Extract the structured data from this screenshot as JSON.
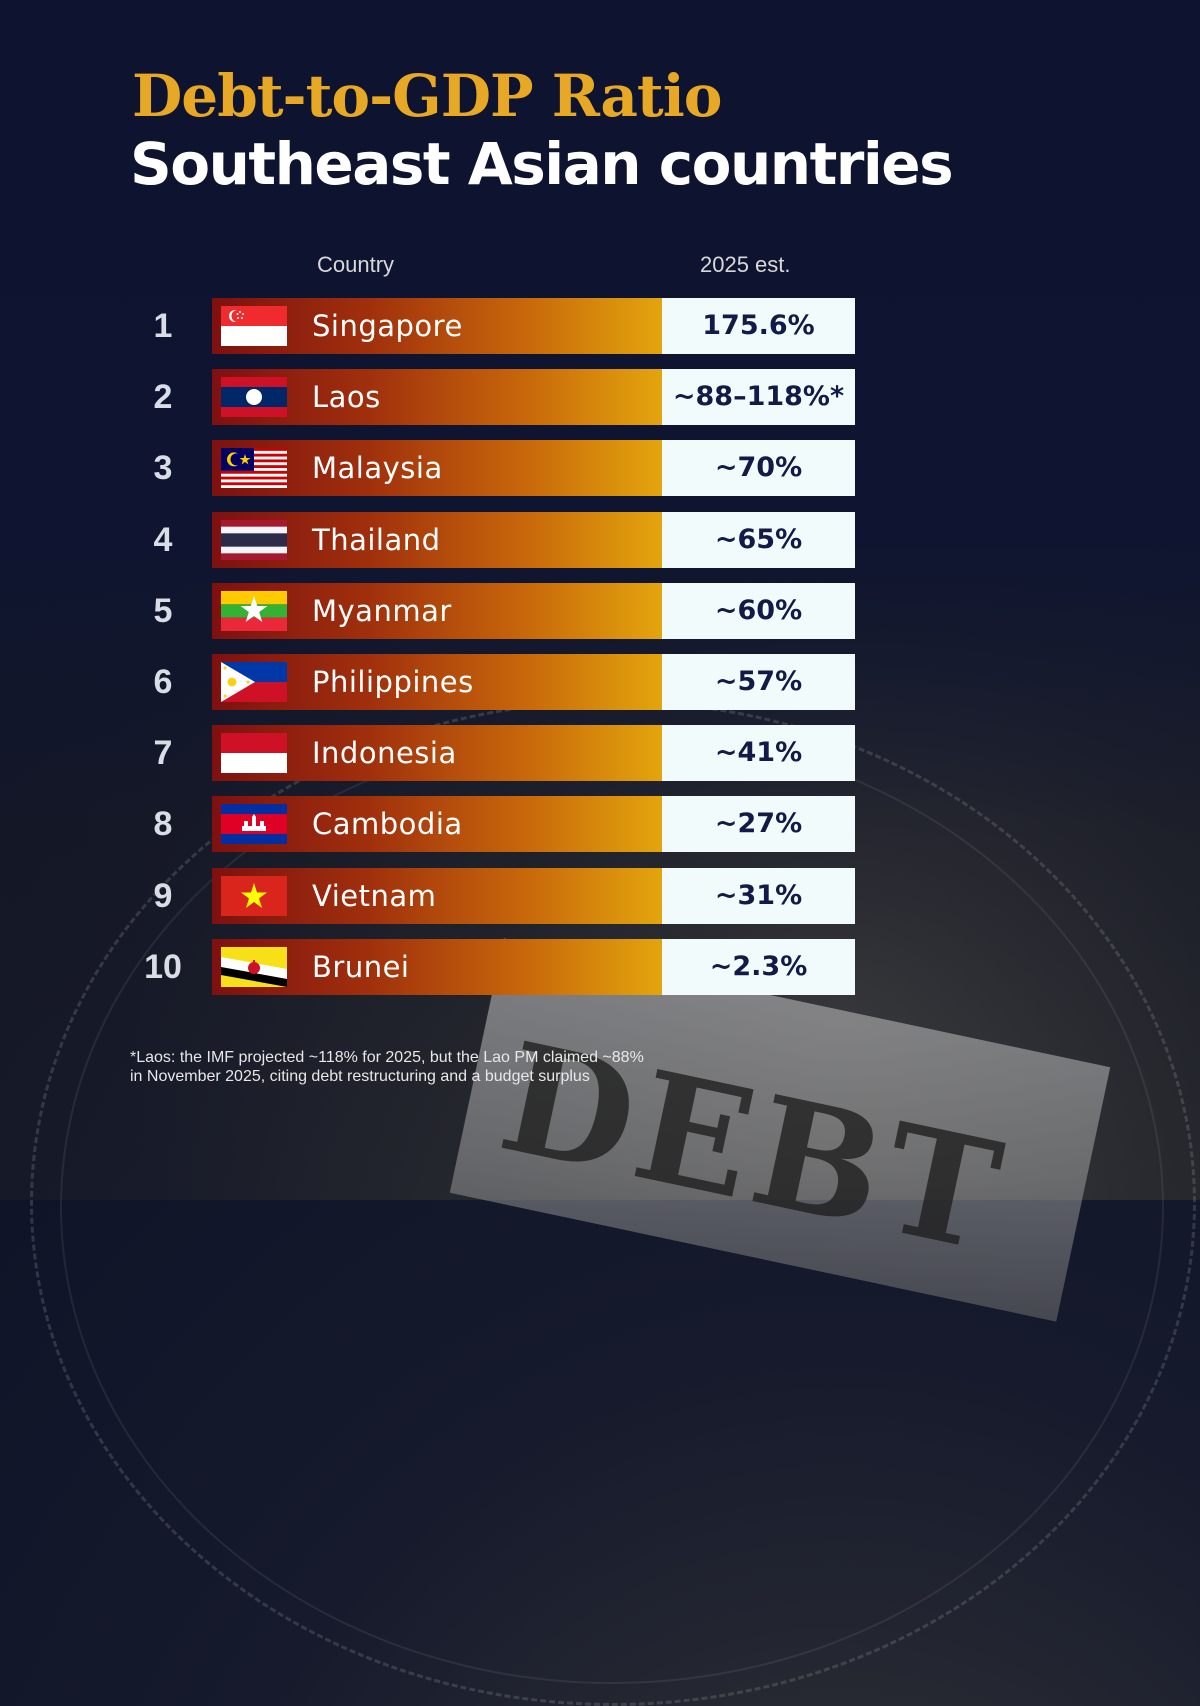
{
  "title": "Debt-to-GDP Ratio",
  "subtitle": "Southeast Asian countries",
  "headers": {
    "country": "Country",
    "value": "2025 est."
  },
  "footnote_line1": "*Laos: the IMF projected ~118% for 2025, but the Lao PM claimed ~88%",
  "footnote_line2": "in November 2025, citing debt restructuring and a budget surplus",
  "background_text": "DEBT",
  "colors": {
    "title": "#e7a925",
    "bar_start": "#7e1010",
    "bar_end": "#e3a50c",
    "value_box": "#f2fbfc",
    "value_text": "#121a48"
  },
  "chart_data": {
    "type": "table",
    "columns": [
      "Country",
      "2025 est."
    ],
    "rows": [
      {
        "rank": "1",
        "country": "Singapore",
        "flag": "singapore-flag",
        "value_label": "175.6%",
        "value": 175.6
      },
      {
        "rank": "2",
        "country": "Laos",
        "flag": "laos-flag",
        "value_label": "~88–118%*",
        "value": [
          88,
          118
        ]
      },
      {
        "rank": "3",
        "country": "Malaysia",
        "flag": "malaysia-flag",
        "value_label": "~70%",
        "value": 70
      },
      {
        "rank": "4",
        "country": "Thailand",
        "flag": "thailand-flag",
        "value_label": "~65%",
        "value": 65
      },
      {
        "rank": "5",
        "country": "Myanmar",
        "flag": "myanmar-flag",
        "value_label": "~60%",
        "value": 60
      },
      {
        "rank": "6",
        "country": "Philippines",
        "flag": "philippines-flag",
        "value_label": "~57%",
        "value": 57
      },
      {
        "rank": "7",
        "country": "Indonesia",
        "flag": "indonesia-flag",
        "value_label": "~41%",
        "value": 41
      },
      {
        "rank": "8",
        "country": "Cambodia",
        "flag": "cambodia-flag",
        "value_label": "~27%",
        "value": 27
      },
      {
        "rank": "9",
        "country": "Vietnam",
        "flag": "vietnam-flag",
        "value_label": "~31%",
        "value": 31
      },
      {
        "rank": "10",
        "country": "Brunei",
        "flag": "brunei-flag",
        "value_label": "~2.3%",
        "value": 2.3
      }
    ]
  }
}
